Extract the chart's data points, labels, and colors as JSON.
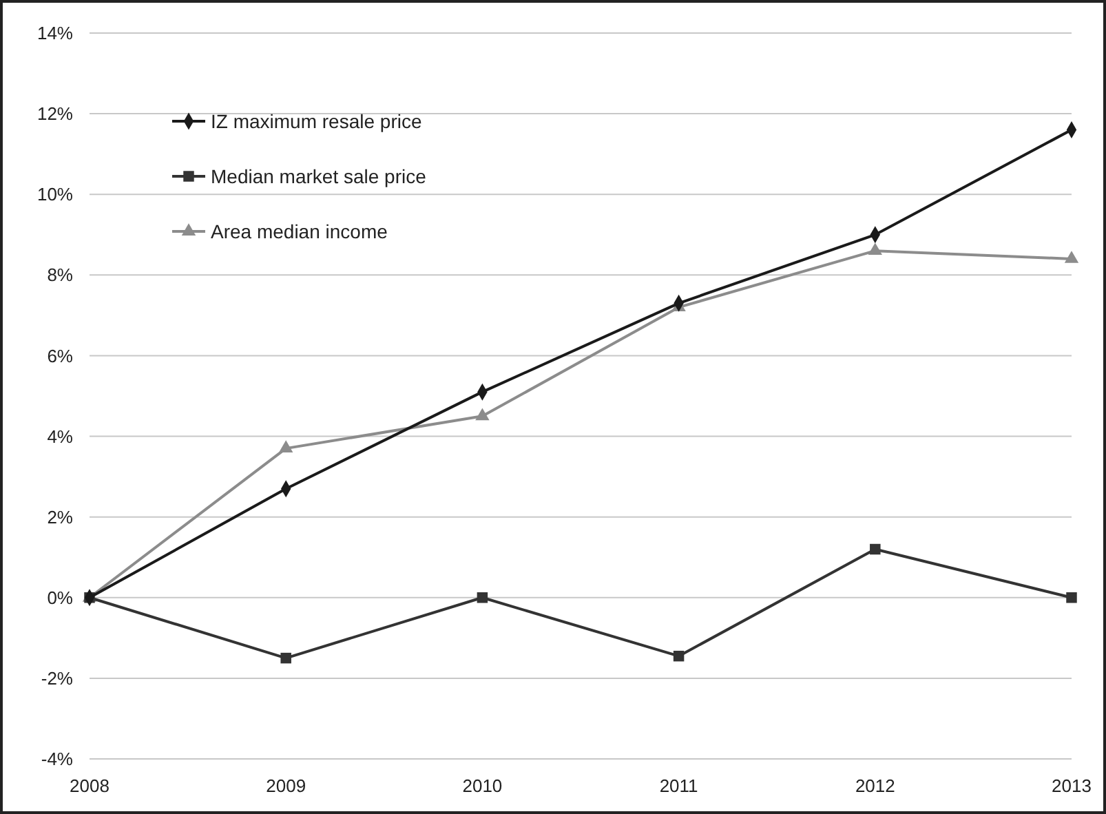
{
  "chart_data": {
    "type": "line",
    "x": [
      2008,
      2009,
      2010,
      2011,
      2012,
      2013
    ],
    "xlim": [
      2008,
      2013
    ],
    "xticks": [
      2008,
      2009,
      2010,
      2011,
      2012,
      2013
    ],
    "ylim": [
      -4,
      14
    ],
    "yticks": [
      {
        "value": -4,
        "label": "-4%"
      },
      {
        "value": -2,
        "label": "-2%"
      },
      {
        "value": 0,
        "label": "0%"
      },
      {
        "value": 2,
        "label": "2%"
      },
      {
        "value": 4,
        "label": "4%"
      },
      {
        "value": 6,
        "label": "6%"
      },
      {
        "value": 8,
        "label": "8%"
      },
      {
        "value": 10,
        "label": "10%"
      },
      {
        "value": 12,
        "label": "12%"
      },
      {
        "value": 14,
        "label": "14%"
      }
    ],
    "grid": "y",
    "legend": "top left",
    "series": [
      {
        "name": "IZ maximum resale price",
        "color": "#1a1a1a",
        "marker": "diamond",
        "values": [
          0,
          2.7,
          5.1,
          7.3,
          9.0,
          11.6
        ]
      },
      {
        "name": "Median market sale price",
        "color": "#333333",
        "marker": "square",
        "values": [
          0,
          -1.5,
          0,
          -1.45,
          1.2,
          0
        ]
      },
      {
        "name": "Area median income",
        "color": "#8c8c8c",
        "marker": "triangle",
        "values": [
          0,
          3.7,
          4.5,
          7.2,
          8.6,
          8.4
        ]
      }
    ]
  }
}
